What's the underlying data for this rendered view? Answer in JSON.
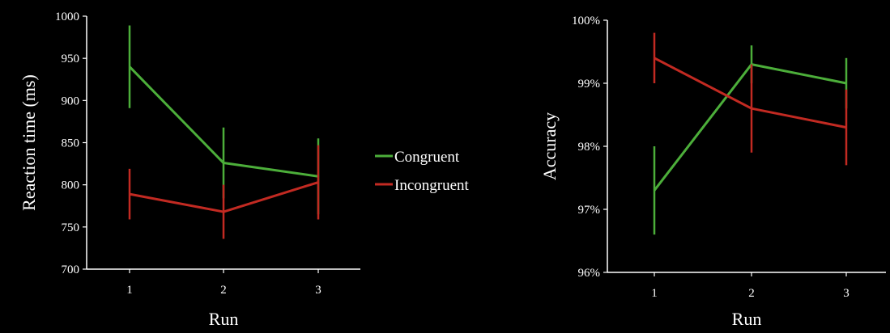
{
  "legend": {
    "entries": [
      {
        "name": "Congruent",
        "color": "#4cae3a"
      },
      {
        "name": "Incongruent",
        "color": "#c22a22"
      }
    ]
  },
  "chart_data": [
    {
      "type": "line",
      "title": "",
      "xlabel": "Run",
      "ylabel": "Reaction time (ms)",
      "x": [
        1,
        2,
        3
      ],
      "x_tick_labels": [
        "1",
        "2",
        "3"
      ],
      "ylim": [
        700,
        1000
      ],
      "y_ticks": [
        700,
        750,
        800,
        850,
        900,
        950,
        1000
      ],
      "y_tick_labels": [
        "700",
        "750",
        "800",
        "850",
        "900",
        "950",
        "1000"
      ],
      "grid": false,
      "legend_position": "right",
      "series": [
        {
          "name": "Congruent",
          "color": "#4cae3a",
          "values": [
            940,
            826,
            810
          ],
          "error": [
            49,
            42,
            45
          ]
        },
        {
          "name": "Incongruent",
          "color": "#c22a22",
          "values": [
            789,
            768,
            803
          ],
          "error": [
            30,
            32,
            44
          ]
        }
      ]
    },
    {
      "type": "line",
      "title": "",
      "xlabel": "Run",
      "ylabel": "Accuracy",
      "x": [
        1,
        2,
        3
      ],
      "x_tick_labels": [
        "1",
        "2",
        "3"
      ],
      "ylim": [
        96,
        100
      ],
      "y_ticks": [
        96,
        97,
        98,
        99,
        100
      ],
      "y_tick_labels": [
        "96%",
        "97%",
        "98%",
        "99%",
        "100%"
      ],
      "grid": false,
      "series": [
        {
          "name": "Congruent",
          "color": "#4cae3a",
          "values": [
            97.3,
            99.3,
            99.0
          ],
          "error": [
            0.7,
            0.3,
            0.4
          ]
        },
        {
          "name": "Incongruent",
          "color": "#c22a22",
          "values": [
            99.4,
            98.6,
            98.3
          ],
          "error": [
            0.4,
            0.7,
            0.6
          ]
        }
      ]
    }
  ]
}
